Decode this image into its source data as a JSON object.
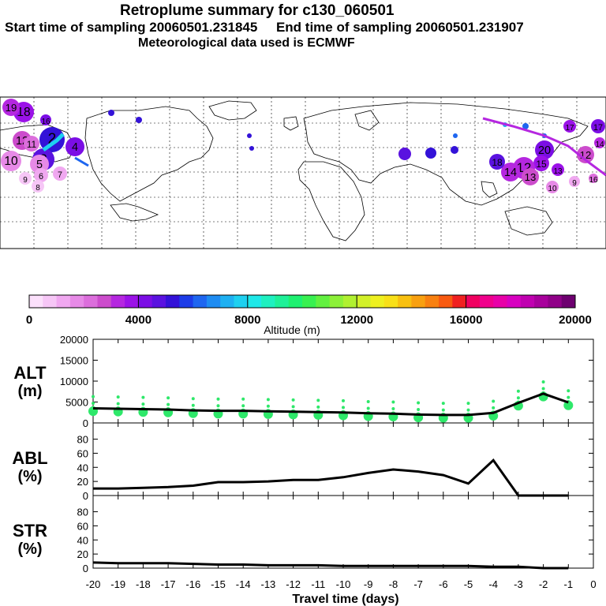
{
  "header": {
    "title": "Retroplume summary for c130_060501",
    "sampling_line": "Start time of sampling 20060501.231845     End time of sampling 20060501.231907",
    "met_line": "Meteorological data used is ECMWF"
  },
  "colorbar": {
    "xlabel": "Altitude (m)",
    "tick_labels": [
      "0",
      "4000",
      "8000",
      "12000",
      "16000",
      "20000"
    ],
    "colors": [
      "#fbe0fb",
      "#f6c6f6",
      "#f0a8f0",
      "#e78ae7",
      "#dc6edc",
      "#cc4ccc",
      "#b527e0",
      "#9b12e8",
      "#7b0ee5",
      "#5a12e0",
      "#3312d8",
      "#1c3ce8",
      "#1e66f0",
      "#1e8cf2",
      "#1eb0f2",
      "#1ed0f0",
      "#1ee8e8",
      "#1ef0c0",
      "#1ef098",
      "#1ef070",
      "#38f050",
      "#62f040",
      "#8cf038",
      "#b0f030",
      "#d2f028",
      "#eef020",
      "#f8e018",
      "#f8c010",
      "#f8a010",
      "#f88010",
      "#f85a10",
      "#f02020",
      "#f00060",
      "#f0008c",
      "#e800a8",
      "#d800c0",
      "#c000b0",
      "#a8009c",
      "#900088",
      "#6e0070"
    ]
  },
  "map": {
    "markers": [
      {
        "label": "18",
        "color": "#9b12e8"
      },
      {
        "label": "19",
        "color": "#b527e0"
      },
      {
        "label": "16",
        "color": "#7b0ee5"
      },
      {
        "label": "12",
        "color": "#cc4ccc"
      },
      {
        "label": "11",
        "color": "#dc6edc"
      },
      {
        "label": "10",
        "color": "#e78ae7"
      },
      {
        "label": "2",
        "color": "#3312d8"
      },
      {
        "label": "3",
        "color": "#5a12e0"
      },
      {
        "label": "4",
        "color": "#7b0ee5"
      },
      {
        "label": "5",
        "color": "#e78ae7"
      },
      {
        "label": "6",
        "color": "#f0a8f0"
      },
      {
        "label": "7",
        "color": "#f0a8f0"
      },
      {
        "label": "9",
        "color": "#f6c6f6"
      },
      {
        "label": "8",
        "color": "#f6c6f6"
      },
      {
        "label": "20",
        "color": "#7b0ee5"
      },
      {
        "label": "15",
        "color": "#9b12e8"
      },
      {
        "label": "12",
        "color": "#b527e0"
      },
      {
        "label": "13",
        "color": "#cc4ccc"
      },
      {
        "label": "14",
        "color": "#b527e0"
      },
      {
        "label": "17",
        "color": "#9b12e8"
      },
      {
        "label": "10",
        "color": "#e78ae7"
      },
      {
        "label": "9",
        "color": "#f0a8f0"
      },
      {
        "label": "16",
        "color": "#dc6edc"
      },
      {
        "label": "12",
        "color": "#cc4ccc"
      },
      {
        "label": "14",
        "color": "#b527e0"
      },
      {
        "label": "13",
        "color": "#9b12e8"
      },
      {
        "label": "17",
        "color": "#7b0ee5"
      },
      {
        "label": "18",
        "color": "#5a12e0"
      }
    ]
  },
  "chart_data": [
    {
      "type": "line",
      "panel": "ALT",
      "ylabel_top": "ALT",
      "ylabel_bottom": "(m)",
      "ylim": [
        0,
        20000
      ],
      "yticks": [
        "0",
        "5000",
        "10000",
        "15000",
        "20000"
      ],
      "x": [
        -20,
        -19,
        -18,
        -17,
        -16,
        -15,
        -14,
        -13,
        -12,
        -11,
        -10,
        -9,
        -8,
        -7,
        -6,
        -5,
        -4,
        -3,
        -2,
        -1
      ],
      "values": [
        3500,
        3400,
        3300,
        3200,
        3000,
        2900,
        2900,
        2800,
        2700,
        2600,
        2500,
        2300,
        2200,
        2000,
        1900,
        1900,
        2400,
        4800,
        7000,
        4900
      ],
      "scatter_color": "#2ee86a"
    },
    {
      "type": "line",
      "panel": "ABL",
      "ylabel_top": "ABL",
      "ylabel_bottom": "(%)",
      "ylim": [
        0,
        100
      ],
      "yticks": [
        "0",
        "20",
        "40",
        "60",
        "80"
      ],
      "x": [
        -20,
        -19,
        -18,
        -17,
        -16,
        -15,
        -14,
        -13,
        -12,
        -11,
        -10,
        -9,
        -8,
        -7,
        -6,
        -5,
        -4,
        -3,
        -2,
        -1
      ],
      "values": [
        10,
        10,
        11,
        12,
        14,
        19,
        19,
        20,
        22,
        22,
        26,
        32,
        37,
        34,
        29,
        17,
        50,
        0,
        0,
        0
      ]
    },
    {
      "type": "line",
      "panel": "STR",
      "ylabel_top": "STR",
      "ylabel_bottom": "(%)",
      "ylim": [
        0,
        100
      ],
      "yticks": [
        "0",
        "20",
        "40",
        "60",
        "80"
      ],
      "x": [
        -20,
        -19,
        -18,
        -17,
        -16,
        -15,
        -14,
        -13,
        -12,
        -11,
        -10,
        -9,
        -8,
        -7,
        -6,
        -5,
        -4,
        -3,
        -2,
        -1
      ],
      "values": [
        8,
        7,
        7,
        7,
        6,
        5,
        5,
        4,
        4,
        4,
        3,
        3,
        3,
        3,
        3,
        3,
        2,
        2,
        0,
        0
      ]
    }
  ],
  "xaxis": {
    "label": "Travel time (days)",
    "tick_labels": [
      "-20",
      "-19",
      "-18",
      "-17",
      "-16",
      "-15",
      "-14",
      "-13",
      "-12",
      "-11",
      "-10",
      "-9",
      "-8",
      "-7",
      "-6",
      "-5",
      "-4",
      "-3",
      "-2",
      "-1",
      "0"
    ]
  }
}
